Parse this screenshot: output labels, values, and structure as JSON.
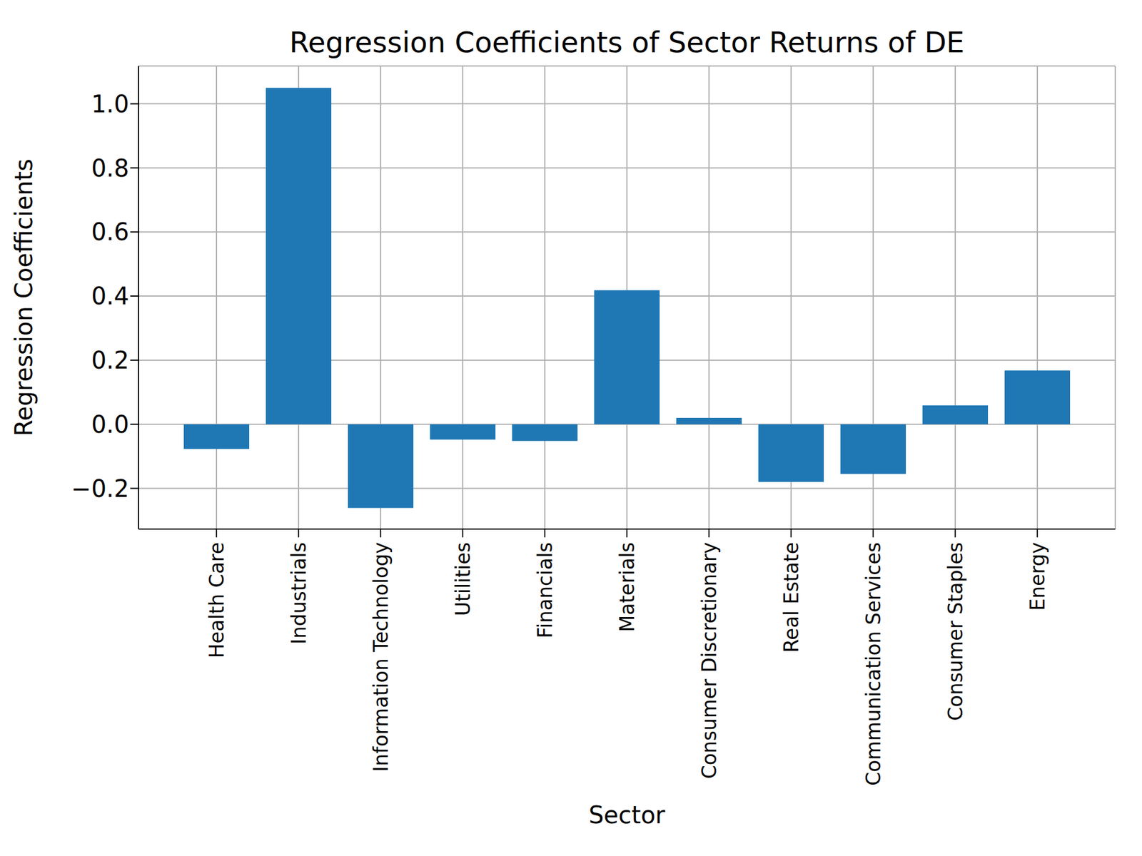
{
  "chart_data": {
    "type": "bar",
    "title": "Regression Coefficients of Sector Returns of DE",
    "x_label": "Sector",
    "y_label": "Regression Coefficients",
    "categories": [
      "Health Care",
      "Industrials",
      "Information Technology",
      "Utilities",
      "Financials",
      "Materials",
      "Consumer Discretionary",
      "Real Estate",
      "Communication Services",
      "Consumer Staples",
      "Energy"
    ],
    "values": [
      -0.077,
      1.05,
      -0.261,
      -0.048,
      -0.052,
      0.418,
      0.02,
      -0.18,
      -0.155,
      0.059,
      0.168
    ],
    "color": "#1f77b4",
    "ylim": [
      -0.327,
      1.118
    ],
    "yticks": [
      {
        "value": -0.2,
        "label": "−0.2"
      },
      {
        "value": 0,
        "label": "0.0"
      },
      0.2,
      0.4,
      0.6,
      0.8,
      {
        "value": 1,
        "label": "1.0"
      }
    ],
    "grid": true
  }
}
